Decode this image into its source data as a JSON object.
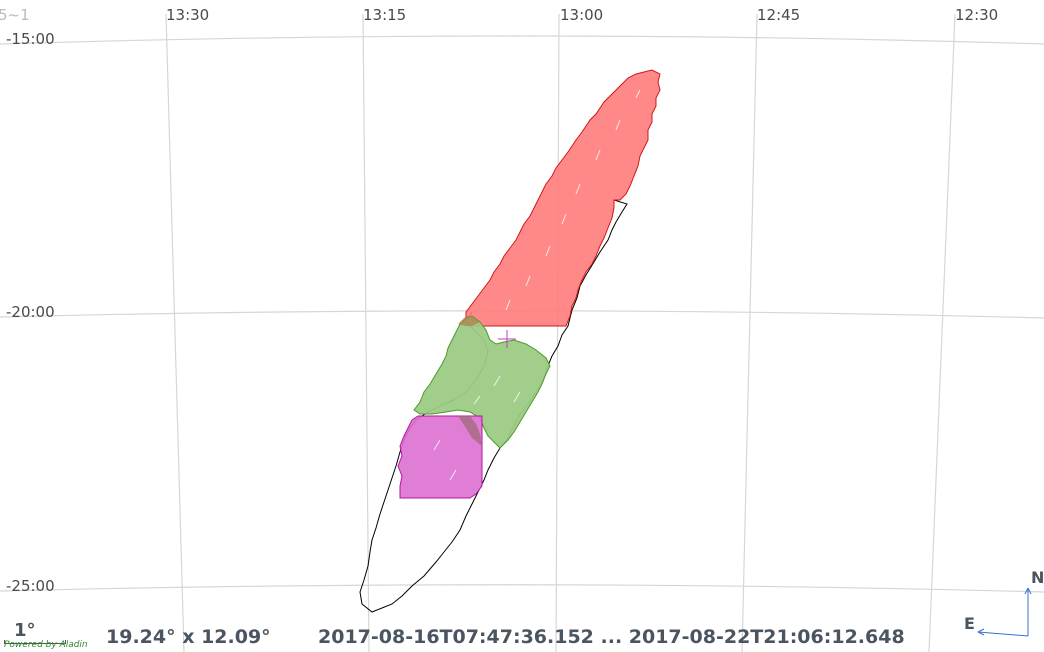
{
  "corner_partial": "5~1",
  "ra_labels": [
    "13:30",
    "13:15",
    "13:00",
    "12:45",
    "12:30"
  ],
  "dec_labels": [
    "-15:00",
    "-20:00",
    "-25:00"
  ],
  "scale": {
    "label": "1°"
  },
  "attribution": "Powered by Aladin",
  "fov": "19.24° x 12.09°",
  "time_range": "2017-08-16T07:47:36.152 ... 2017-08-22T21:06:12.648",
  "compass": {
    "east": "E",
    "north": "N"
  },
  "colors": {
    "grid": "#d4d6d8",
    "footprint_outline": "#000000",
    "red_region": "#ff7b7b",
    "red_stroke": "#d01818",
    "green_region": "#9ccb84",
    "green_stroke": "#4c9a2a",
    "magenta_region": "#dd6fd0",
    "magenta_stroke": "#b0189e",
    "reticle": "#c040c0"
  }
}
